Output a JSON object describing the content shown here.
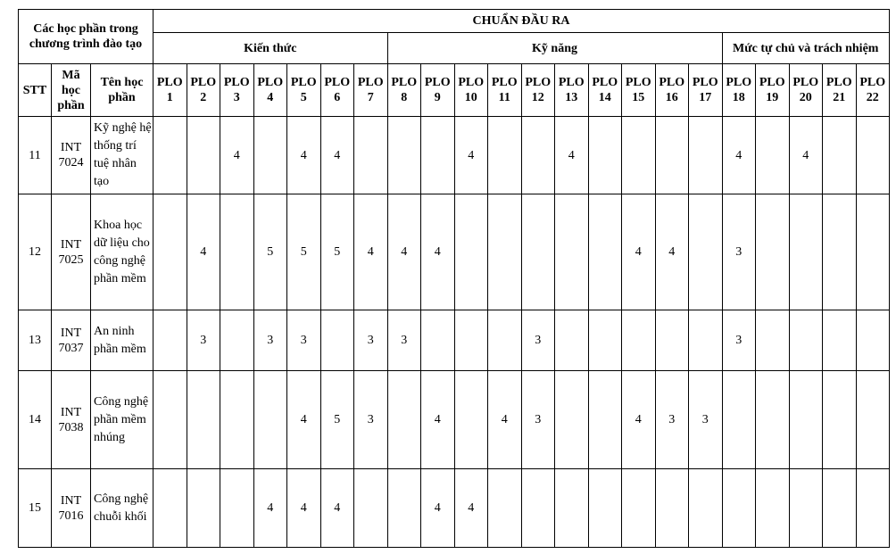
{
  "header": {
    "group_title": "Các học phần trong chương trình đào tạo",
    "outcomes_title": "CHUẨN ĐẦU RA",
    "categories": [
      {
        "label": "Kiến thức",
        "span": 7
      },
      {
        "label": "Kỹ năng",
        "span": 10
      },
      {
        "label": "Mức tự chủ và trách nhiệm",
        "span": 5
      }
    ],
    "col_stt": "STT",
    "col_code": "Mã học phần",
    "col_name": "Tên học phần",
    "plo_prefix": "PLO",
    "plos": [
      "1",
      "2",
      "3",
      "4",
      "5",
      "6",
      "7",
      "8",
      "9",
      "10",
      "11",
      "12",
      "13",
      "14",
      "15",
      "16",
      "17",
      "18",
      "19",
      "20",
      "21",
      "22"
    ]
  },
  "rows": [
    {
      "stt": "11",
      "code": "INT 7024",
      "name": "Kỹ nghệ hệ thống trí tuệ nhân tạo",
      "height": 87,
      "values": [
        "",
        "",
        "4",
        "",
        "4",
        "4",
        "",
        "",
        "",
        "4",
        "",
        "",
        "4",
        "",
        "",
        "",
        "",
        "4",
        "",
        "4",
        "",
        ""
      ]
    },
    {
      "stt": "12",
      "code": "INT 7025",
      "name": "Khoa học dữ liệu cho công nghệ phần mềm",
      "height": 130,
      "values": [
        "",
        "4",
        "",
        "5",
        "5",
        "5",
        "4",
        "4",
        "4",
        "",
        "",
        "",
        "",
        "",
        "4",
        "4",
        "",
        "3",
        "",
        "",
        "",
        ""
      ]
    },
    {
      "stt": "13",
      "code": "INT 7037",
      "name": "An ninh phần mềm",
      "height": 68,
      "values": [
        "",
        "3",
        "",
        "3",
        "3",
        "",
        "3",
        "3",
        "",
        "",
        "",
        "3",
        "",
        "",
        "",
        "",
        "",
        "3",
        "",
        "",
        "",
        ""
      ]
    },
    {
      "stt": "14",
      "code": "INT 7038",
      "name": "Công nghệ phần mềm nhúng",
      "height": 110,
      "values": [
        "",
        "",
        "",
        "",
        "4",
        "5",
        "3",
        "",
        "4",
        "",
        "4",
        "3",
        "",
        "",
        "4",
        "3",
        "3",
        "",
        "",
        "",
        "",
        ""
      ]
    },
    {
      "stt": "15",
      "code": "INT 7016",
      "name": "Công nghệ chuỗi khối",
      "height": 88,
      "values": [
        "",
        "",
        "",
        "4",
        "4",
        "4",
        "",
        "",
        "4",
        "4",
        "",
        "",
        "",
        "",
        "",
        "",
        "",
        "",
        "",
        "",
        "",
        ""
      ]
    }
  ]
}
